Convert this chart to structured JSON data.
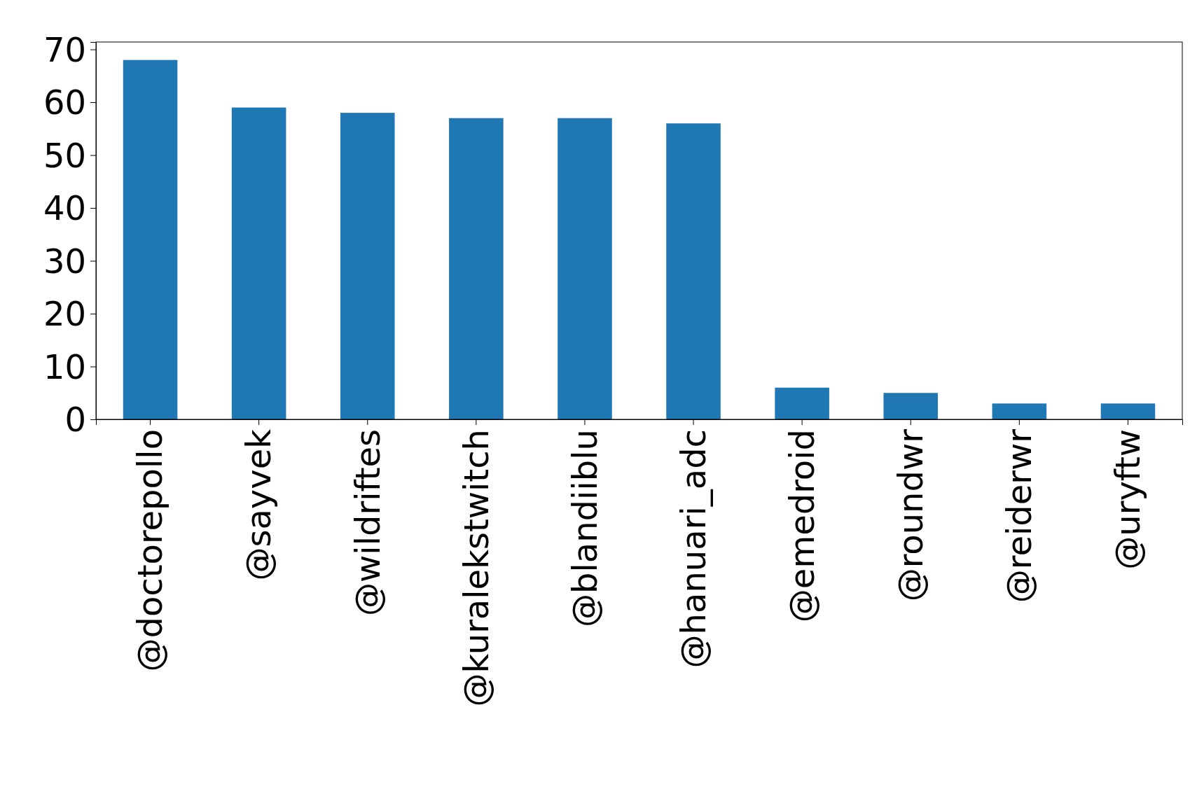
{
  "chart_data": {
    "type": "bar",
    "categories": [
      "@doctorepollo",
      "@sayvek",
      "@wildriftes",
      "@kuralekstwitch",
      "@blandiiblu",
      "@hanuari_adc",
      "@emedroid",
      "@roundwr",
      "@reiderwr",
      "@uryftw"
    ],
    "values": [
      68,
      59,
      58,
      57,
      57,
      56,
      6,
      5,
      3,
      3
    ],
    "color": "#1f77b4",
    "ylim": [
      0,
      71.4
    ],
    "yticks": [
      0,
      10,
      20,
      30,
      40,
      50,
      60,
      70
    ],
    "grid": false
  }
}
